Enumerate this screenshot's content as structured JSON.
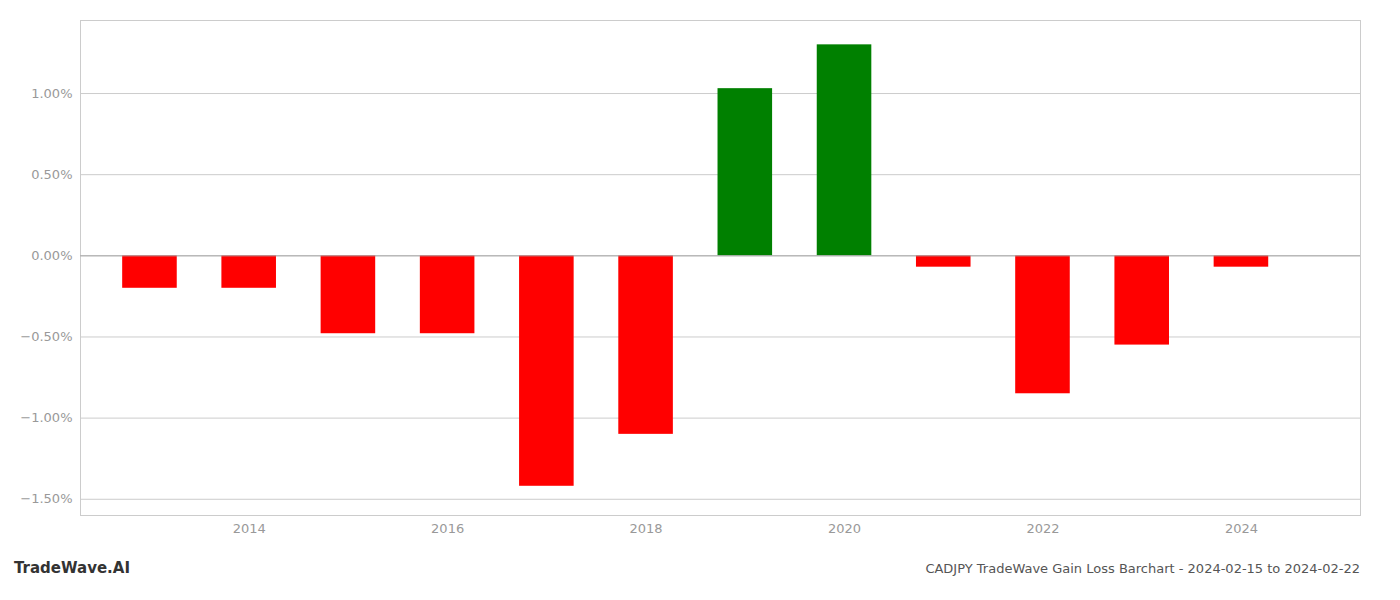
{
  "chart_data": {
    "type": "bar",
    "title": "CADJPY TradeWave Gain Loss Barchart - 2024-02-15 to 2024-02-22",
    "annotations": [
      "TradeWave.AI"
    ],
    "x": [
      2013,
      2014,
      2015,
      2016,
      2017,
      2018,
      2019,
      2020,
      2021,
      2022,
      2023,
      2024
    ],
    "values": [
      -0.2,
      -0.2,
      -0.48,
      -0.48,
      -1.42,
      -1.1,
      1.03,
      1.3,
      -0.07,
      -0.85,
      -0.55,
      -0.07
    ],
    "colors": [
      "#ff0000",
      "#ff0000",
      "#ff0000",
      "#ff0000",
      "#ff0000",
      "#ff0000",
      "#008000",
      "#008000",
      "#ff0000",
      "#ff0000",
      "#ff0000",
      "#ff0000"
    ],
    "xlim": [
      2012.3,
      2025.2
    ],
    "xticks": [
      2014,
      2016,
      2018,
      2020,
      2022,
      2024
    ],
    "ylim": [
      -1.6,
      1.45
    ],
    "yticks": [
      {
        "value": -1.5,
        "label": "−1.50%"
      },
      {
        "value": -1.0,
        "label": "−1.00%"
      },
      {
        "value": -0.5,
        "label": "−0.50%"
      },
      {
        "value": 0.0,
        "label": "0.00%"
      },
      {
        "value": 0.5,
        "label": "0.50%"
      },
      {
        "value": 1.0,
        "label": "1.00%"
      }
    ],
    "grid": true
  }
}
